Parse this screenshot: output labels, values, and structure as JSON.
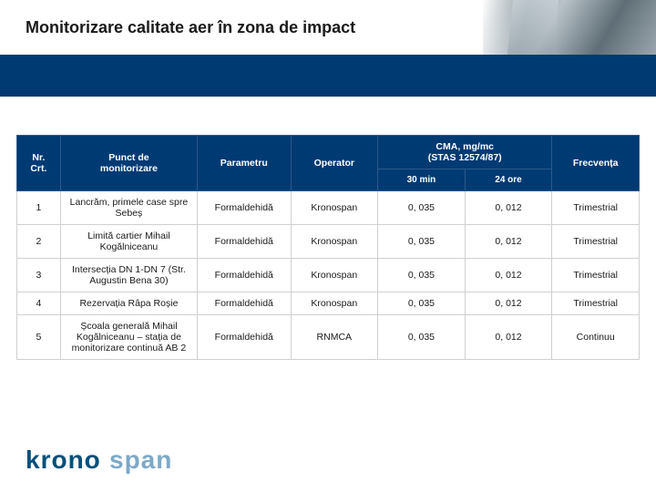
{
  "title": "Monitorizare calitate aer în zona de impact",
  "brand_color": "#003a73",
  "logo_color_dark": "#004f7c",
  "logo_color_light": "#7da9c7",
  "header": {
    "nr": "Nr.\nCrt.",
    "punct": "Punct de\nmonitorizare",
    "param": "Parametru",
    "operator": "Operator",
    "cma_group": "CMA, mg/mc\n(STAS 12574/87)",
    "cma_30": "30 min",
    "cma_24": "24 ore",
    "frecv": "Frecvența"
  },
  "rows": [
    {
      "nr": "1",
      "punct": "Lancrăm, primele case spre Sebeș",
      "param": "Formaldehidă",
      "operator": "Kronospan",
      "c30": "0, 035",
      "c24": "0, 012",
      "frecv": "Trimestrial"
    },
    {
      "nr": "2",
      "punct": "Limită cartier Mihail Kogălniceanu",
      "param": "Formaldehidă",
      "operator": "Kronospan",
      "c30": "0, 035",
      "c24": "0, 012",
      "frecv": "Trimestrial"
    },
    {
      "nr": "3",
      "punct": "Intersecția DN 1-DN 7 (Str. Augustin Bena 30)",
      "param": "Formaldehidă",
      "operator": "Kronospan",
      "c30": "0, 035",
      "c24": "0, 012",
      "frecv": "Trimestrial"
    },
    {
      "nr": "4",
      "punct": "Rezervația Râpa Roșie",
      "param": "Formaldehidă",
      "operator": "Kronospan",
      "c30": "0, 035",
      "c24": "0, 012",
      "frecv": "Trimestrial"
    },
    {
      "nr": "5",
      "punct": "Școala generală Mihail Kogălniceanu – stația de monitorizare continuă AB 2",
      "param": "Formaldehidă",
      "operator": "RNMCA",
      "c30": "0, 035",
      "c24": "0, 012",
      "frecv": "Continuu"
    }
  ],
  "logo_text_dark": "krono",
  "logo_text_light": "span"
}
